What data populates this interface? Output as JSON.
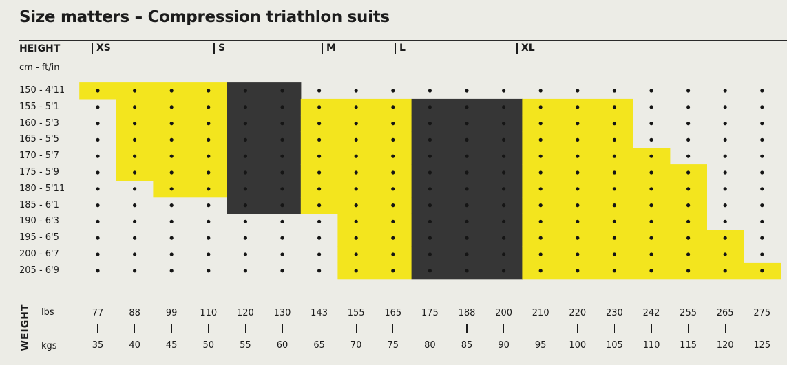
{
  "title": "Size matters – Compression triathlon suits",
  "height_header": "HEIGHT",
  "height_unit": "cm - ft/in",
  "weight_axis_label": "WEIGHT",
  "weight_units": {
    "lbs": "lbs",
    "kgs": "kgs"
  },
  "sizes": [
    "XS",
    "S",
    "M",
    "L",
    "XL"
  ],
  "colors": {
    "yellow": "#f3e51e",
    "dark": "#363636",
    "background": "#ecece6",
    "dot": "#151515"
  },
  "chart_data": {
    "type": "heatmap",
    "title": "Size matters – Compression triathlon suits",
    "ylabel": "HEIGHT",
    "yunit": "cm - ft/in",
    "xlabel": "WEIGHT",
    "size_order": [
      "XS",
      "S",
      "M",
      "L",
      "XL"
    ],
    "heights": [
      "150 - 4'11",
      "155 - 5'1",
      "160 - 5'3",
      "165 - 5'5",
      "170 - 5'7",
      "175 - 5'9",
      "180 - 5'11",
      "185 - 6'1",
      "190 - 6'3",
      "195 - 6'5",
      "200 - 6'7",
      "205 - 6'9"
    ],
    "weights_lbs": [
      "77",
      "88",
      "99",
      "110",
      "120",
      "130",
      "143",
      "155",
      "165",
      "175",
      "188",
      "200",
      "210",
      "220",
      "230",
      "242",
      "255",
      "265",
      "275"
    ],
    "weights_kgs": [
      "35",
      "40",
      "45",
      "50",
      "55",
      "60",
      "65",
      "70",
      "75",
      "80",
      "85",
      "90",
      "95",
      "100",
      "105",
      "110",
      "115",
      "120",
      "125"
    ],
    "size_ranges": [
      {
        "size": "XS",
        "rows": [
          [
            0,
            3
          ],
          [
            1,
            3
          ],
          [
            1,
            3
          ],
          [
            1,
            3
          ],
          [
            1,
            3
          ],
          [
            1,
            3
          ],
          [
            2,
            3
          ],
          null,
          null,
          null,
          null,
          null
        ]
      },
      {
        "size": "S",
        "rows": [
          [
            4,
            5
          ],
          [
            4,
            5
          ],
          [
            4,
            5
          ],
          [
            4,
            5
          ],
          [
            4,
            5
          ],
          [
            4,
            5
          ],
          [
            4,
            5
          ],
          [
            4,
            5
          ],
          null,
          null,
          null,
          null
        ]
      },
      {
        "size": "M",
        "rows": [
          null,
          [
            6,
            8
          ],
          [
            6,
            8
          ],
          [
            6,
            8
          ],
          [
            6,
            8
          ],
          [
            6,
            8
          ],
          [
            6,
            8
          ],
          [
            6,
            8
          ],
          [
            7,
            8
          ],
          [
            7,
            8
          ],
          [
            7,
            8
          ],
          [
            7,
            8
          ]
        ]
      },
      {
        "size": "L",
        "rows": [
          null,
          [
            9,
            11
          ],
          [
            9,
            11
          ],
          [
            9,
            11
          ],
          [
            9,
            11
          ],
          [
            9,
            11
          ],
          [
            9,
            11
          ],
          [
            9,
            11
          ],
          [
            9,
            11
          ],
          [
            9,
            11
          ],
          [
            9,
            11
          ],
          [
            9,
            11
          ]
        ]
      },
      {
        "size": "XL",
        "rows": [
          null,
          [
            12,
            14
          ],
          [
            12,
            14
          ],
          [
            12,
            14
          ],
          [
            12,
            15
          ],
          [
            12,
            16
          ],
          [
            12,
            16
          ],
          [
            12,
            16
          ],
          [
            12,
            16
          ],
          [
            12,
            17
          ],
          [
            12,
            17
          ],
          [
            12,
            18
          ]
        ]
      }
    ]
  }
}
